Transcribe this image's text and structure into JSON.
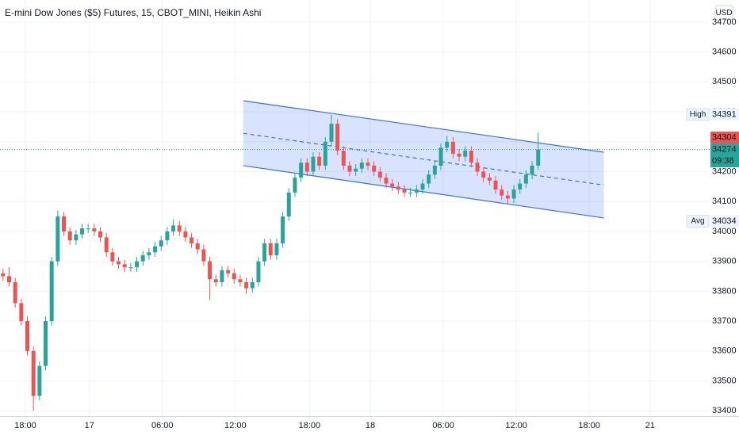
{
  "chart_data": {
    "type": "candlestick",
    "title": "E-mini Dow Jones ($5) Futures, 15, CBOT_MINI, Heikin Ashi",
    "currency": "USD",
    "up_color": "#26a69a",
    "down_color": "#ef5350",
    "open": [
      33860,
      33850,
      33830,
      33760,
      33700,
      33600,
      33450,
      33550,
      33700,
      33900,
      34050,
      34000,
      33970,
      33990,
      34010,
      34010,
      34000,
      33980,
      33930,
      33900,
      33890,
      33880,
      33880,
      33900,
      33920,
      33930,
      33950,
      33970,
      34000,
      34020,
      34000,
      33980,
      33960,
      33940,
      33900,
      33840,
      33830,
      33870,
      33860,
      33840,
      33830,
      33810,
      33830,
      33900,
      33960,
      33920,
      33960,
      34050,
      34130,
      34180,
      34230,
      34200,
      34250,
      34220,
      34300,
      34360,
      34270,
      34220,
      34200,
      34210,
      34230,
      34220,
      34200,
      34180,
      34160,
      34150,
      34140,
      34130,
      34130,
      34140,
      34160,
      34190,
      34220,
      34280,
      34300,
      34260,
      34250,
      34270,
      34230,
      34200,
      34180,
      34170,
      34140,
      34120,
      34110,
      34140,
      34160,
      34190,
      34220
    ],
    "high": [
      33875,
      33880,
      33845,
      33775,
      33715,
      33615,
      33565,
      33715,
      33915,
      34070,
      34065,
      34015,
      34005,
      34025,
      34025,
      34025,
      34015,
      33995,
      33945,
      33915,
      33905,
      33895,
      33915,
      33935,
      33945,
      33965,
      33985,
      34015,
      34040,
      34035,
      34015,
      33995,
      33975,
      33955,
      33915,
      33855,
      33885,
      33885,
      33875,
      33855,
      33845,
      33845,
      33915,
      33975,
      33975,
      33975,
      34065,
      34145,
      34195,
      34245,
      34245,
      34265,
      34265,
      34315,
      34390,
      34375,
      34285,
      34235,
      34225,
      34245,
      34245,
      34235,
      34215,
      34195,
      34175,
      34165,
      34155,
      34145,
      34155,
      34175,
      34205,
      34235,
      34295,
      34320,
      34315,
      34275,
      34285,
      34285,
      34245,
      34215,
      34195,
      34185,
      34155,
      34135,
      34155,
      34175,
      34205,
      34235,
      34330
    ],
    "low": [
      33835,
      33815,
      33745,
      33685,
      33585,
      33400,
      33435,
      33535,
      33685,
      33885,
      33985,
      33955,
      33955,
      33975,
      33995,
      33985,
      33965,
      33915,
      33885,
      33875,
      33865,
      33865,
      33865,
      33885,
      33905,
      33915,
      33935,
      33955,
      33985,
      33985,
      33965,
      33945,
      33925,
      33885,
      33770,
      33815,
      33815,
      33845,
      33825,
      33815,
      33790,
      33795,
      33815,
      33885,
      33905,
      33905,
      33945,
      34035,
      34115,
      34165,
      34185,
      34185,
      34205,
      34205,
      34285,
      34255,
      34205,
      34185,
      34185,
      34195,
      34205,
      34185,
      34165,
      34145,
      34135,
      34125,
      34115,
      34115,
      34115,
      34125,
      34145,
      34175,
      34205,
      34265,
      34245,
      34235,
      34235,
      34215,
      34185,
      34165,
      34155,
      34125,
      34105,
      34090,
      34095,
      34125,
      34145,
      34175,
      34205
    ],
    "close": [
      33850,
      33830,
      33760,
      33700,
      33600,
      33450,
      33550,
      33700,
      33900,
      34050,
      34000,
      33970,
      33990,
      34010,
      34010,
      34000,
      33980,
      33930,
      33900,
      33890,
      33880,
      33880,
      33900,
      33920,
      33930,
      33950,
      33970,
      34000,
      34020,
      34000,
      33980,
      33960,
      33940,
      33900,
      33840,
      33830,
      33870,
      33860,
      33840,
      33830,
      33810,
      33830,
      33900,
      33960,
      33920,
      33960,
      34050,
      34130,
      34180,
      34230,
      34200,
      34250,
      34220,
      34300,
      34360,
      34270,
      34220,
      34200,
      34210,
      34230,
      34220,
      34200,
      34180,
      34160,
      34150,
      34140,
      34130,
      34130,
      34140,
      34160,
      34190,
      34220,
      34280,
      34300,
      34260,
      34250,
      34270,
      34230,
      34200,
      34180,
      34170,
      34140,
      34120,
      34110,
      34140,
      34160,
      34190,
      34220,
      34274
    ],
    "xlim": [
      0,
      116.7
    ],
    "xticks": [
      {
        "value": 4.17,
        "label": "18:00"
      },
      {
        "value": 14.7,
        "label": "17"
      },
      {
        "value": 26.7,
        "label": "06:00"
      },
      {
        "value": 38.7,
        "label": "12:00"
      },
      {
        "value": 50.9,
        "label": "18:00"
      },
      {
        "value": 60.9,
        "label": "18"
      },
      {
        "value": 72.9,
        "label": "06:00"
      },
      {
        "value": 84.9,
        "label": "12:00"
      },
      {
        "value": 96.9,
        "label": "18:00"
      },
      {
        "value": 106.9,
        "label": "21"
      }
    ],
    "ylim": [
      33382,
      34774
    ],
    "yticks": [
      34700,
      34600,
      34500,
      34400,
      34300,
      34200,
      34100,
      34000,
      33900,
      33800,
      33700,
      33600,
      33500,
      33400
    ],
    "grid": true,
    "channel": {
      "color": "#3b6fd9",
      "upper": {
        "x": [
          40.0,
          99.3
        ],
        "y": [
          34437,
          34265
        ]
      },
      "middle": {
        "x": [
          40.0,
          99.3
        ],
        "y": [
          34328,
          34155
        ]
      },
      "lower": {
        "x": [
          40.0,
          99.3
        ],
        "y": [
          34220,
          34045
        ]
      }
    },
    "price_tags": [
      {
        "name": "High",
        "value": 34391
      },
      {
        "value": 34304,
        "color": "#ef5350"
      },
      {
        "value": 34274,
        "color": "#26a69a",
        "countdown": "09:38"
      },
      {
        "name": "Avg",
        "value": 34034
      }
    ]
  }
}
